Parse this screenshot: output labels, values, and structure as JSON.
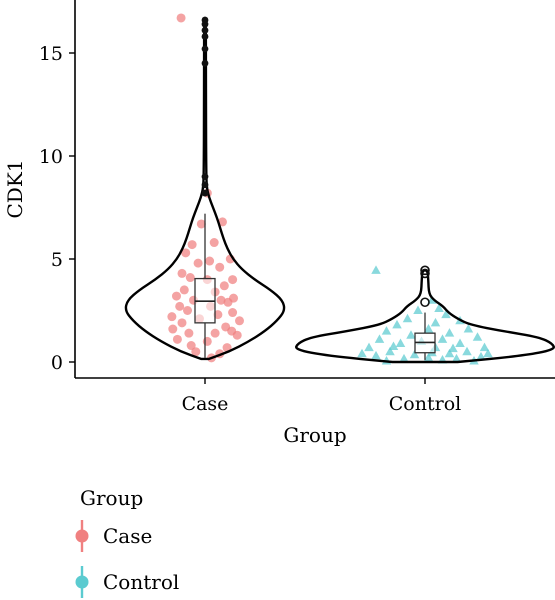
{
  "chart_data": {
    "type": "violin",
    "xlabel": "Group",
    "ylabel": "CDK1",
    "categories": [
      "Case",
      "Control"
    ],
    "ylim": [
      -0.6,
      17.4
    ],
    "yticks": [
      0,
      5,
      10,
      15
    ],
    "ytick_labels": [
      "0",
      "5",
      "10",
      "15"
    ],
    "grid": false,
    "legend": {
      "title": "Group",
      "placement": "bottom-left",
      "entries": [
        {
          "label": "Case",
          "color": "#F08080",
          "marker": "circle"
        },
        {
          "label": "Control",
          "color": "#5BCBD0",
          "marker": "triangle"
        }
      ]
    },
    "series": [
      {
        "category": "Case",
        "color": "#F08080",
        "marker": "circle",
        "box": {
          "min": 0.2,
          "q1": 1.9,
          "median": 2.95,
          "q3": 4.05,
          "max": 7.2
        },
        "outliers": [
          8.2,
          8.6,
          9.0,
          14.5,
          15.2,
          15.8,
          16.1,
          16.4,
          16.6
        ],
        "violin": [
          [
            0.15,
            0.05
          ],
          [
            0.5,
            0.3
          ],
          [
            1.0,
            0.55
          ],
          [
            1.5,
            0.75
          ],
          [
            2.0,
            0.9
          ],
          [
            2.5,
            1.0
          ],
          [
            3.0,
            0.97
          ],
          [
            3.5,
            0.82
          ],
          [
            4.0,
            0.62
          ],
          [
            4.5,
            0.46
          ],
          [
            5.0,
            0.35
          ],
          [
            5.5,
            0.28
          ],
          [
            6.0,
            0.23
          ],
          [
            6.5,
            0.19
          ],
          [
            7.0,
            0.15
          ],
          [
            7.5,
            0.1
          ],
          [
            8.0,
            0.05
          ],
          [
            8.5,
            0.02
          ],
          [
            9.5,
            0.015
          ],
          [
            12,
            0.012
          ],
          [
            14.5,
            0.012
          ],
          [
            16.7,
            0.01
          ]
        ],
        "points": [
          [
            -0.52,
            16.7
          ],
          [
            0.05,
            8.2
          ],
          [
            -0.08,
            6.7
          ],
          [
            0.38,
            6.8
          ],
          [
            -0.42,
            5.3
          ],
          [
            0.55,
            5.0
          ],
          [
            0.2,
            5.8
          ],
          [
            -0.28,
            5.7
          ],
          [
            -0.15,
            4.8
          ],
          [
            0.1,
            4.9
          ],
          [
            0.32,
            4.6
          ],
          [
            -0.5,
            4.3
          ],
          [
            0.6,
            4.0
          ],
          [
            -0.32,
            4.1
          ],
          [
            0.05,
            4.0
          ],
          [
            0.42,
            3.7
          ],
          [
            -0.45,
            3.5
          ],
          [
            0.22,
            3.4
          ],
          [
            -0.62,
            3.2
          ],
          [
            0.62,
            3.1
          ],
          [
            -0.25,
            3.0
          ],
          [
            0.35,
            3.0
          ],
          [
            0.5,
            2.9
          ],
          [
            -0.55,
            2.7
          ],
          [
            0.12,
            2.7
          ],
          [
            -0.38,
            2.5
          ],
          [
            0.6,
            2.4
          ],
          [
            -0.72,
            2.2
          ],
          [
            0.28,
            2.3
          ],
          [
            -0.12,
            2.1
          ],
          [
            0.75,
            2.0
          ],
          [
            -0.5,
            1.9
          ],
          [
            0.45,
            1.7
          ],
          [
            -0.7,
            1.6
          ],
          [
            0.58,
            1.5
          ],
          [
            -0.35,
            1.4
          ],
          [
            0.22,
            1.4
          ],
          [
            0.7,
            1.3
          ],
          [
            -0.6,
            1.1
          ],
          [
            0.05,
            1.0
          ],
          [
            -0.3,
            0.8
          ],
          [
            0.48,
            0.7
          ],
          [
            -0.2,
            0.5
          ],
          [
            0.32,
            0.4
          ],
          [
            0.14,
            0.2
          ]
        ]
      },
      {
        "category": "Control",
        "color": "#5BCBD0",
        "marker": "triangle",
        "box": {
          "min": 0.1,
          "q1": 0.45,
          "median": 0.95,
          "q3": 1.4,
          "max": 2.4
        },
        "outliers": [
          2.9,
          4.3,
          4.45
        ],
        "violin": [
          [
            0.0,
            0.25
          ],
          [
            0.3,
            0.75
          ],
          [
            0.6,
            1.0
          ],
          [
            0.9,
            0.98
          ],
          [
            1.2,
            0.88
          ],
          [
            1.5,
            0.6
          ],
          [
            1.8,
            0.35
          ],
          [
            2.1,
            0.25
          ],
          [
            2.4,
            0.18
          ],
          [
            2.7,
            0.14
          ],
          [
            3.0,
            0.07
          ],
          [
            3.3,
            0.03
          ],
          [
            4.0,
            0.025
          ],
          [
            4.45,
            0.02
          ]
        ],
        "points": [
          [
            -0.7,
            4.45
          ],
          [
            0.1,
            3.0
          ],
          [
            0.2,
            2.6
          ],
          [
            -0.1,
            2.5
          ],
          [
            0.3,
            2.3
          ],
          [
            -0.25,
            2.1
          ],
          [
            0.5,
            2.0
          ],
          [
            -0.4,
            1.8
          ],
          [
            0.15,
            1.9
          ],
          [
            0.62,
            1.6
          ],
          [
            -0.55,
            1.5
          ],
          [
            0.05,
            1.6
          ],
          [
            0.35,
            1.4
          ],
          [
            -0.2,
            1.3
          ],
          [
            0.75,
            1.2
          ],
          [
            -0.65,
            1.1
          ],
          [
            0.25,
            1.1
          ],
          [
            -0.05,
            1.0
          ],
          [
            0.5,
            0.9
          ],
          [
            -0.35,
            0.9
          ],
          [
            0.85,
            0.7
          ],
          [
            -0.8,
            0.7
          ],
          [
            0.15,
            0.7
          ],
          [
            0.6,
            0.5
          ],
          [
            -0.5,
            0.5
          ],
          [
            0.35,
            0.4
          ],
          [
            -0.15,
            0.35
          ],
          [
            0.8,
            0.25
          ],
          [
            -0.7,
            0.3
          ],
          [
            0.05,
            0.2
          ],
          [
            0.45,
            0.15
          ],
          [
            -0.3,
            0.15
          ],
          [
            0.25,
            0.1
          ],
          [
            -0.55,
            0.05
          ],
          [
            0.7,
            0.05
          ],
          [
            0.9,
            0.4
          ],
          [
            -0.9,
            0.4
          ],
          [
            0.4,
            0.65
          ],
          [
            -0.45,
            0.75
          ],
          [
            0.1,
            0.45
          ]
        ]
      }
    ]
  }
}
